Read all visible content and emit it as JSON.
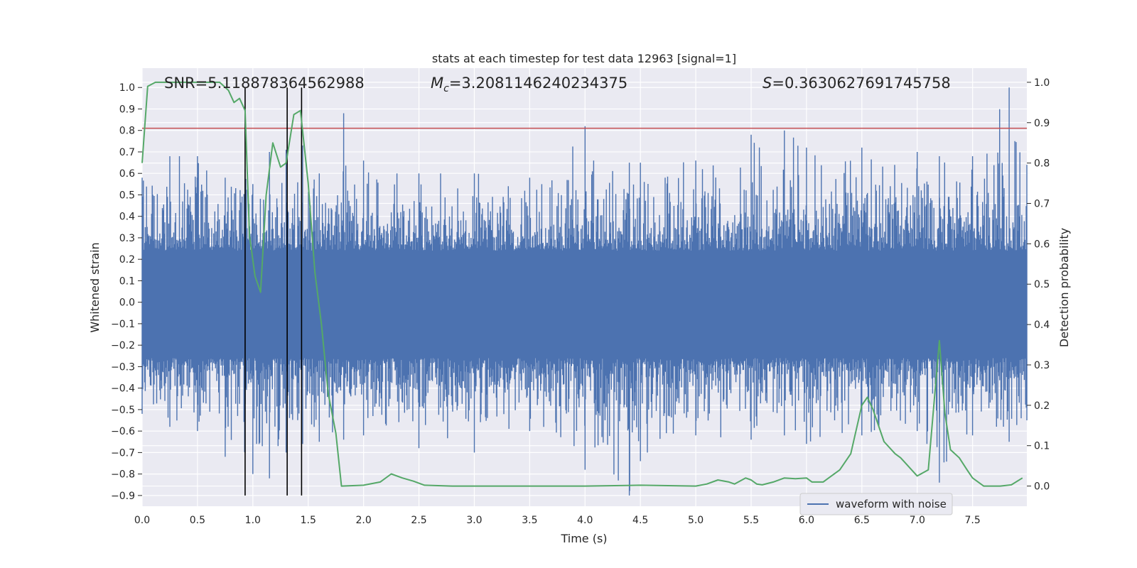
{
  "chart_data": {
    "type": "line",
    "title": "stats at each timestep for test data 12963 [signal=1]",
    "xlabel": "Time (s)",
    "ylabel": "Whitened strain",
    "y2label": "Detection probability",
    "annotations": {
      "snr": "SNR=5.118878364562988",
      "mc_symbol": "M",
      "mc_sub": "c",
      "mc_value": "=3.2081146240234375",
      "s_symbol": "S",
      "s_value": "=0.3630627691745758"
    },
    "xlim": [
      0,
      7.99
    ],
    "ylim": [
      -0.95,
      1.09
    ],
    "y2lim": [
      -0.05,
      1.035
    ],
    "x_ticks": [
      0.0,
      0.5,
      1.0,
      1.5,
      2.0,
      2.5,
      3.0,
      3.5,
      4.0,
      4.5,
      5.0,
      5.5,
      6.0,
      6.5,
      7.0,
      7.5
    ],
    "x_tick_labels": [
      "0.0",
      "0.5",
      "1.0",
      "1.5",
      "2.0",
      "2.5",
      "3.0",
      "3.5",
      "4.0",
      "4.5",
      "5.0",
      "5.5",
      "6.0",
      "6.5",
      "7.0",
      "7.5"
    ],
    "y_ticks": [
      1.0,
      0.9,
      0.8,
      0.7,
      0.6,
      0.5,
      0.4,
      0.3,
      0.2,
      0.1,
      0.0,
      -0.1,
      -0.2,
      -0.3,
      -0.4,
      -0.5,
      -0.6,
      -0.7,
      -0.8,
      -0.9
    ],
    "y_tick_labels": [
      "1.0",
      "0.9",
      "0.8",
      "0.7",
      "0.6",
      "0.5",
      "0.4",
      "0.3",
      "0.2",
      "0.1",
      "0.0",
      "−0.1",
      "−0.2",
      "−0.3",
      "−0.4",
      "−0.5",
      "−0.6",
      "−0.7",
      "−0.8",
      "−0.9"
    ],
    "y2_ticks": [
      1.0,
      0.9,
      0.8,
      0.7,
      0.6,
      0.5,
      0.4,
      0.3,
      0.2,
      0.1,
      0.0
    ],
    "y2_tick_labels": [
      "1.0",
      "0.9",
      "0.8",
      "0.7",
      "0.6",
      "0.5",
      "0.4",
      "0.3",
      "0.2",
      "0.1",
      "0.0"
    ],
    "grid": true,
    "legend_placement": "bottom-right",
    "series": [
      {
        "name": "waveform with noise",
        "axis": "left",
        "color": "#4c72b0",
        "envelope_x": [
          0.0,
          0.25,
          0.5,
          0.75,
          0.93,
          1.0,
          1.15,
          1.3,
          1.45,
          1.6,
          1.82,
          2.0,
          2.5,
          3.0,
          3.5,
          4.0,
          4.4,
          4.5,
          5.0,
          5.5,
          5.8,
          6.0,
          6.5,
          7.0,
          7.2,
          7.5,
          7.83,
          7.99
        ],
        "envelope_max": [
          0.58,
          0.68,
          0.68,
          0.58,
          0.62,
          0.55,
          0.7,
          0.71,
          0.73,
          0.6,
          0.88,
          0.66,
          0.6,
          0.6,
          0.58,
          0.82,
          0.65,
          0.65,
          0.66,
          0.78,
          0.8,
          0.72,
          0.72,
          0.7,
          0.68,
          0.68,
          1.0,
          0.64
        ],
        "envelope_min": [
          -0.52,
          -0.58,
          -0.6,
          -0.72,
          -0.7,
          -0.8,
          -0.82,
          -0.7,
          -0.66,
          -0.65,
          -0.64,
          -0.62,
          -0.68,
          -0.7,
          -0.6,
          -0.78,
          -0.9,
          -0.74,
          -0.62,
          -0.64,
          -0.62,
          -0.66,
          -0.62,
          -0.6,
          -0.84,
          -0.62,
          -0.65,
          -0.55
        ],
        "line_color": "#c44e52",
        "line_level": 0.81
      },
      {
        "name": "",
        "axis": "right",
        "color": "#55a868",
        "x": [
          0.0,
          0.05,
          0.12,
          0.3,
          0.5,
          0.7,
          0.78,
          0.83,
          0.88,
          0.93,
          0.97,
          1.02,
          1.07,
          1.12,
          1.18,
          1.25,
          1.3,
          1.37,
          1.43,
          1.5,
          1.56,
          1.62,
          1.68,
          1.75,
          1.8,
          2.0,
          2.15,
          2.25,
          2.35,
          2.45,
          2.55,
          2.8,
          3.0,
          3.5,
          4.0,
          4.5,
          5.0,
          5.1,
          5.2,
          5.3,
          5.35,
          5.45,
          5.5,
          5.55,
          5.6,
          5.7,
          5.8,
          5.9,
          6.0,
          6.05,
          6.15,
          6.2,
          6.3,
          6.4,
          6.5,
          6.55,
          6.6,
          6.7,
          6.8,
          6.85,
          7.0,
          7.1,
          7.2,
          7.25,
          7.3,
          7.38,
          7.45,
          7.5,
          7.6,
          7.75,
          7.85,
          7.95
        ],
        "y": [
          0.8,
          0.99,
          1.0,
          1.0,
          1.0,
          1.0,
          0.98,
          0.95,
          0.96,
          0.93,
          0.62,
          0.52,
          0.48,
          0.72,
          0.85,
          0.79,
          0.8,
          0.92,
          0.93,
          0.75,
          0.53,
          0.4,
          0.23,
          0.13,
          0.0,
          0.002,
          0.01,
          0.03,
          0.02,
          0.012,
          0.002,
          0.0,
          0.0,
          0.0,
          0.0,
          0.002,
          0.0,
          0.005,
          0.015,
          0.01,
          0.005,
          0.02,
          0.015,
          0.005,
          0.003,
          0.01,
          0.02,
          0.018,
          0.02,
          0.01,
          0.01,
          0.02,
          0.04,
          0.08,
          0.2,
          0.22,
          0.19,
          0.11,
          0.08,
          0.07,
          0.025,
          0.04,
          0.36,
          0.18,
          0.09,
          0.07,
          0.04,
          0.02,
          0.0,
          0.0,
          0.003,
          0.02
        ]
      }
    ],
    "vertical_lines": {
      "color": "#000000",
      "x": [
        0.93,
        1.31,
        1.44
      ],
      "y_from": -0.9,
      "y_to": 1.0
    }
  }
}
